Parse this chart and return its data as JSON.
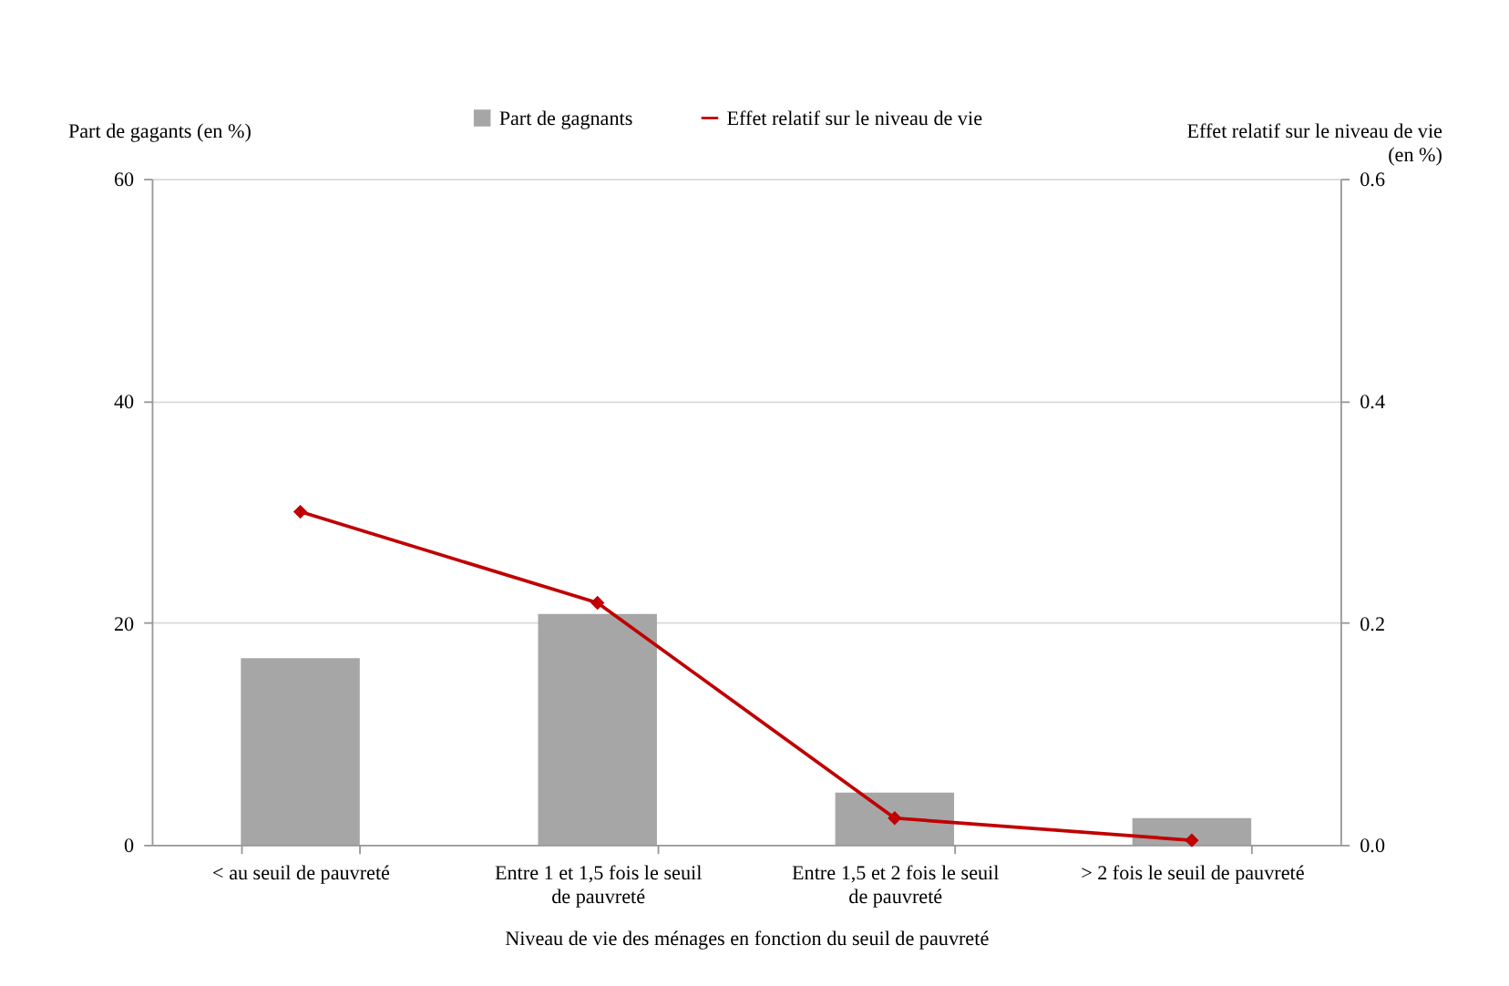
{
  "chart_data": {
    "type": "bar",
    "xlabel": "Niveau de vie des ménages en fonction du seuil de pauvreté",
    "ylabel": "Part de gagants (en %)",
    "y2label": "Effet relatif sur le niveau de vie (en %)",
    "categories": [
      "< au seuil de pauvreté",
      "Entre 1 et 1,5 fois le seuil de pauvreté",
      "Entre 1,5 et 2 fois le seuil de pauvreté",
      "> 2 fois le seuil de pauvreté"
    ],
    "series": [
      {
        "name": "Part de gagnants",
        "color": "#a6a6a6",
        "values": [
          16.8,
          20.8,
          4.7,
          2.4
        ]
      },
      {
        "name": "Effet relatif sur le niveau de vie",
        "type": "line",
        "axis": "y2",
        "color": "#c00000",
        "marker": "diamond",
        "values": [
          0.3,
          0.218,
          0.024,
          0.004
        ]
      }
    ],
    "ylim": [
      0,
      60
    ],
    "yticks": [
      0,
      20,
      40,
      60
    ],
    "y2lim": [
      0,
      0.6
    ],
    "y2ticks": [
      {
        "value": 0,
        "label": "0.0"
      },
      {
        "value": 0.2,
        "label": "0.2"
      },
      {
        "value": 0.4,
        "label": "0.4"
      },
      {
        "value": 0.6,
        "label": "0.6"
      }
    ],
    "grid": "y",
    "legend": "top"
  }
}
